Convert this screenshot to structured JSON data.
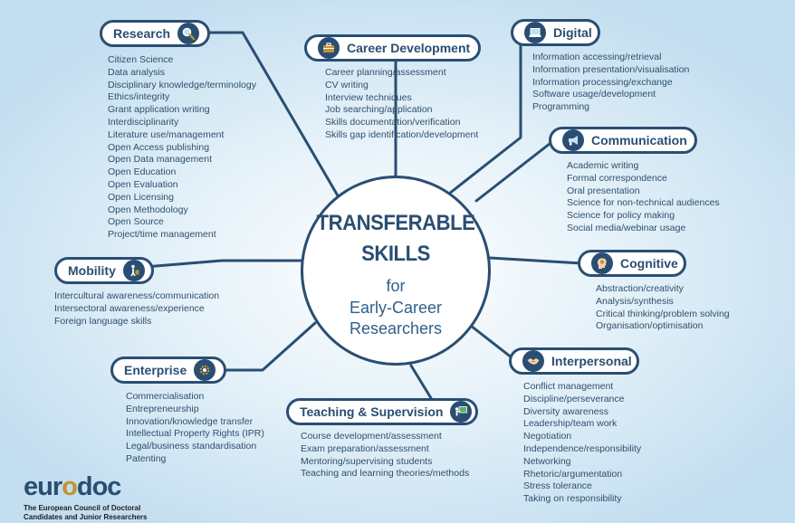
{
  "center": {
    "title_line1": "TRANSFERABLE",
    "title_line2": "SKILLS",
    "line3": "for",
    "line4": "Early-Career",
    "line5": "Researchers"
  },
  "categories": {
    "research": {
      "label": "Research",
      "icon": "magnifier-icon",
      "items": [
        "Citizen Science",
        "Data analysis",
        "Disciplinary knowledge/terminology",
        "Ethics/integrity",
        "Grant application writing",
        "Interdisciplinarity",
        "Literature use/management",
        "Open Access publishing",
        "Open Data management",
        "Open Education",
        "Open Evaluation",
        "Open Licensing",
        "Open Methodology",
        "Open Source",
        "Project/time management"
      ]
    },
    "career": {
      "label": "Career Development",
      "icon": "briefcase-icon",
      "items": [
        "Career planning/assessment",
        "CV writing",
        "Interview techniques",
        "Job searching/application",
        "Skills documentation/verification",
        "Skills gap identification/development"
      ]
    },
    "digital": {
      "label": "Digital",
      "icon": "laptop-icon",
      "items": [
        "Information accessing/retrieval",
        "Information presentation/visualisation",
        "Information processing/exchange",
        "Software usage/development",
        "Programming"
      ]
    },
    "communication": {
      "label": "Communication",
      "icon": "megaphone-icon",
      "items": [
        "Academic writing",
        "Formal correspondence",
        "Oral presentation",
        "Science for non-technical audiences",
        "Science for policy making",
        "Social media/webinar usage"
      ]
    },
    "mobility": {
      "label": "Mobility",
      "icon": "traveller-icon",
      "items": [
        "Intercultural awareness/communication",
        "Intersectoral awareness/experience",
        "Foreign language skills"
      ]
    },
    "cognitive": {
      "label": "Cognitive",
      "icon": "brain-head-icon",
      "items": [
        "Abstraction/creativity",
        "Analysis/synthesis",
        "Critical thinking/problem solving",
        "Organisation/optimisation"
      ]
    },
    "enterprise": {
      "label": "Enterprise",
      "icon": "gear-icon",
      "items": [
        "Commercialisation",
        "Entrepreneurship",
        "Innovation/knowledge transfer",
        "Intellectual Property Rights (IPR)",
        "Legal/business standardisation",
        "Patenting"
      ]
    },
    "interpersonal": {
      "label": "Interpersonal",
      "icon": "handshake-icon",
      "items": [
        "Conflict management",
        "Discipline/perseverance",
        "Diversity awareness",
        "Leadership/team work",
        "Negotiation",
        "Independence/responsibility",
        "Networking",
        "Rhetoric/argumentation",
        "Stress tolerance",
        "Taking on responsibility"
      ]
    },
    "teaching": {
      "label": "Teaching & Supervision",
      "icon": "teacher-board-icon",
      "items": [
        "Course development/assessment",
        "Exam preparation/assessment",
        "Mentoring/supervising students",
        "Teaching and learning theories/methods"
      ]
    }
  },
  "brand": {
    "logo_part1": "eur",
    "logo_part2": "o",
    "logo_part3": "d",
    "logo_part4": "o",
    "logo_part5": "c",
    "tagline1": "The European Council of Doctoral",
    "tagline2": "Candidates and Junior Researchers"
  },
  "colors": {
    "navy": "#2a4e73",
    "accent_gold": "#c4922e",
    "background": "#d8ebf6"
  }
}
